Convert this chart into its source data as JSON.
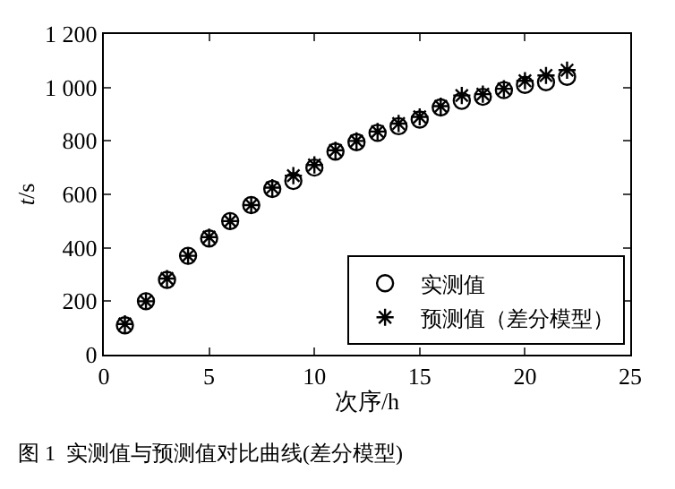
{
  "chart_data": {
    "type": "scatter",
    "xlabel": "次序/h",
    "ylabel": "t/s",
    "annotations": [
      "图 1  实测值与预测值对比曲线(差分模型)"
    ],
    "x": [
      1,
      2,
      3,
      4,
      5,
      6,
      7,
      8,
      9,
      10,
      11,
      12,
      13,
      14,
      15,
      16,
      17,
      18,
      19,
      20,
      21,
      22
    ],
    "series": [
      {
        "name": "实测值",
        "color": "#000000",
        "marker": "circle",
        "values": [
          110,
          200,
          280,
          370,
          435,
          500,
          560,
          620,
          650,
          700,
          760,
          795,
          830,
          855,
          880,
          925,
          950,
          965,
          990,
          1010,
          1020,
          1040
        ]
      },
      {
        "name": "预测值（差分模型）",
        "color": "#000000",
        "marker": "cross",
        "values": [
          115,
          200,
          285,
          370,
          440,
          500,
          560,
          625,
          670,
          710,
          765,
          800,
          835,
          865,
          890,
          930,
          970,
          975,
          995,
          1025,
          1045,
          1065
        ]
      }
    ],
    "xlim": [
      0,
      25
    ],
    "xticks": [
      0,
      5,
      10,
      15,
      20,
      25
    ],
    "ylim": [
      0,
      1200
    ],
    "yticks": [
      0,
      200,
      400,
      600,
      800,
      {
        "value": 1000,
        "label": "1 000"
      },
      {
        "value": 1200,
        "label": "1 200"
      }
    ],
    "legend": "bottom right"
  }
}
